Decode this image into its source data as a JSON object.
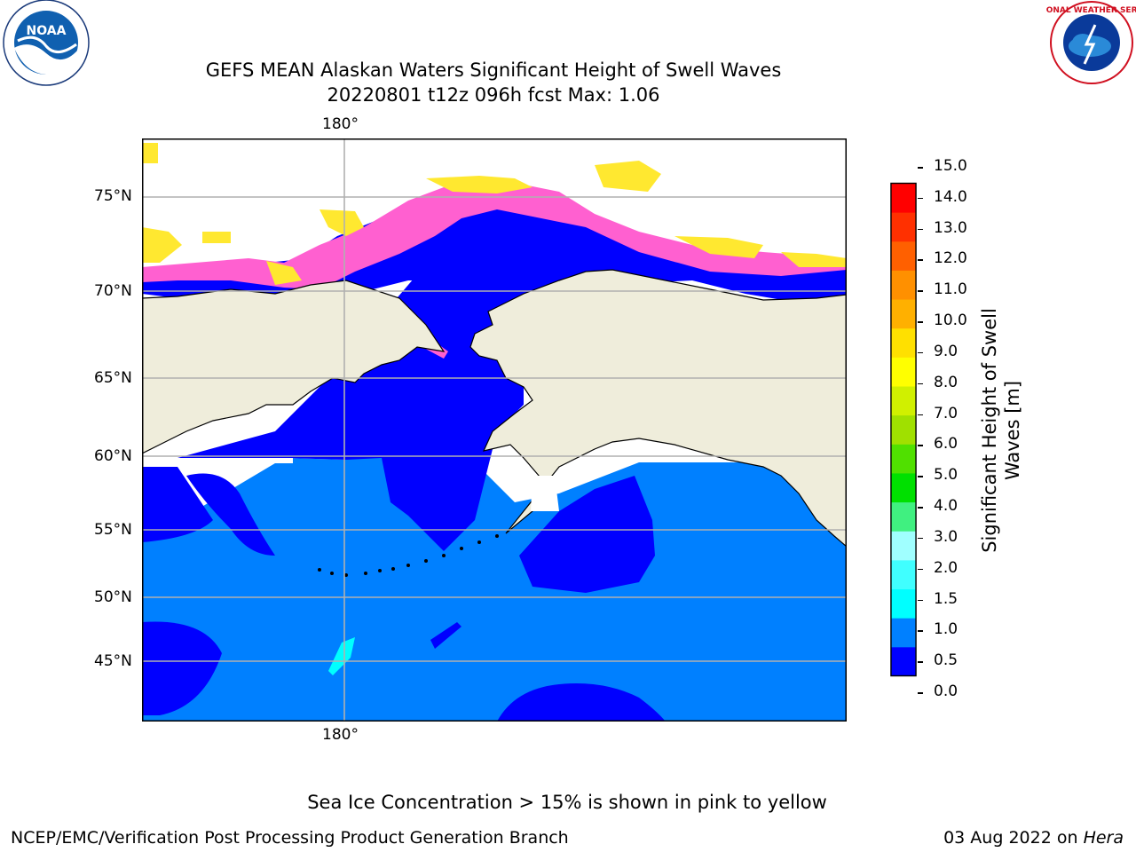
{
  "header": {
    "title_line1": "GEFS MEAN Alaskan Waters Significant Height of Swell Waves",
    "title_line2": "20220801 t12z 096h fcst   Max: 1.06",
    "left_logo_text": "NOAA",
    "left_logo_ring_text": "NATIONAL OCEANIC AND ATMOSPHERIC ADMINISTRATION · U.S. DEPARTMENT OF COMMERCE",
    "right_logo_ring_text": "NATIONAL WEATHER SERVICE"
  },
  "map": {
    "lon_label_top": "180°",
    "lon_label_bottom": "180°",
    "lat_labels": [
      "75°N",
      "70°N",
      "65°N",
      "60°N",
      "55°N",
      "50°N",
      "45°N"
    ],
    "colors": {
      "land": "#efeddb",
      "sea_dark": "#0000ff",
      "sea_light": "#0080ff",
      "sea_cyan": "#00ffff",
      "ice_pink": "#ff60d0",
      "ice_yellow": "#ffe830",
      "grid": "#b0b0b0",
      "coast": "#000000"
    }
  },
  "colorbar": {
    "label": "Significant Height of Swell Waves [m]",
    "label_line1": "Significant Height of Swell",
    "label_line2": "Waves [m]",
    "ticks": [
      "0.0",
      "0.5",
      "1.0",
      "1.5",
      "2.0",
      "3.0",
      "4.0",
      "5.0",
      "6.0",
      "7.0",
      "8.0",
      "9.0",
      "10.0",
      "11.0",
      "12.0",
      "13.0",
      "14.0",
      "15.0"
    ],
    "colors": [
      "#0000ff",
      "#0080ff",
      "#00ffff",
      "#40ffff",
      "#a0ffff",
      "#40f080",
      "#00e000",
      "#50e000",
      "#a0e000",
      "#d0f000",
      "#ffff00",
      "#ffe000",
      "#ffb000",
      "#ff9000",
      "#ff6000",
      "#ff3000",
      "#ff0000"
    ]
  },
  "footer": {
    "note": "Sea Ice Concentration > 15% is shown in pink to yellow",
    "branch": "NCEP/EMC/Verification Post Processing Product Generation Branch",
    "date_text": "03 Aug 2022 on ",
    "machine": "Hera"
  }
}
